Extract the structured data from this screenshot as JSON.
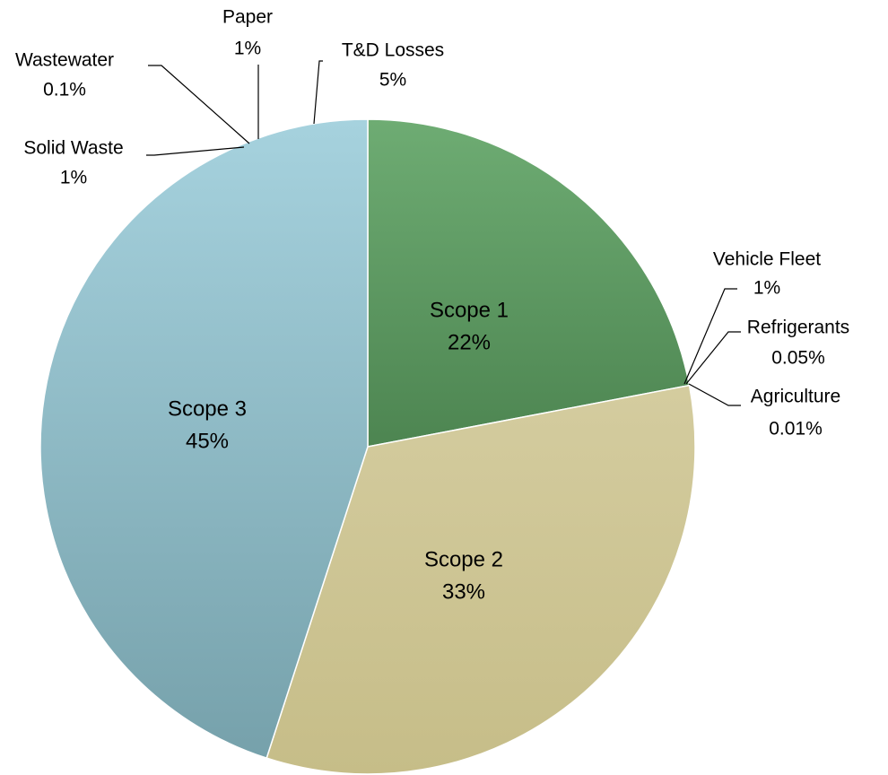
{
  "chart_data": {
    "type": "pie",
    "categories": [
      "Scope 1",
      "Scope 2",
      "Scope 3"
    ],
    "values": [
      22,
      33,
      45
    ],
    "value_labels": [
      "22%",
      "33%",
      "45%"
    ],
    "colors": [
      [
        "#6eac73",
        "#4d8551"
      ],
      [
        "#d4cc9f",
        "#c6bd88"
      ],
      [
        "#a6d2de",
        "#76a1ab"
      ]
    ],
    "annotations": [
      {
        "label": "Vehicle Fleet",
        "value": 1,
        "value_label": "1%"
      },
      {
        "label": "Refrigerants",
        "value": 0.05,
        "value_label": "0.05%"
      },
      {
        "label": "Agriculture",
        "value": 0.01,
        "value_label": "0.01%"
      },
      {
        "label": "Solid Waste",
        "value": 1,
        "value_label": "1%"
      },
      {
        "label": "Wastewater",
        "value": 0.1,
        "value_label": "0.1%"
      },
      {
        "label": "Paper",
        "value": 1,
        "value_label": "1%"
      },
      {
        "label": "T&D Losses",
        "value": 5,
        "value_label": "5%"
      }
    ]
  }
}
